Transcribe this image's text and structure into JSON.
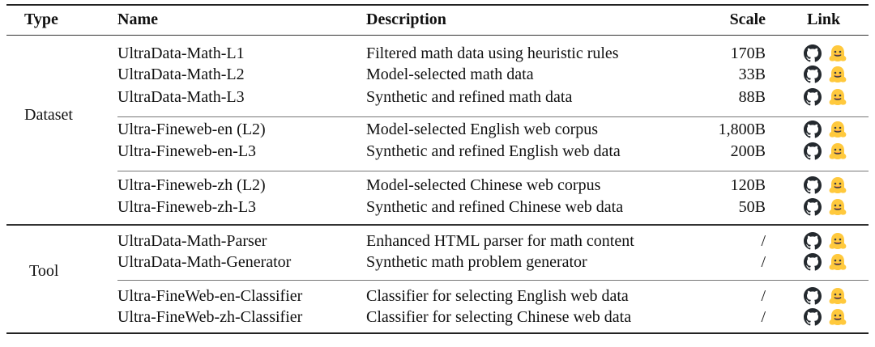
{
  "header": {
    "type": "Type",
    "name": "Name",
    "description": "Description",
    "scale": "Scale",
    "link": "Link"
  },
  "groups": [
    {
      "type": "Dataset",
      "rows": [
        {
          "name": "UltraData-Math-L1",
          "description": "Filtered math data using heuristic rules",
          "scale": "170B"
        },
        {
          "name": "UltraData-Math-L2",
          "description": "Model-selected math data",
          "scale": "33B"
        },
        {
          "name": "UltraData-Math-L3",
          "description": "Synthetic and refined math data",
          "scale": "88B"
        },
        {
          "name": "Ultra-Fineweb-en (L2)",
          "description": "Model-selected English web corpus",
          "scale": "1,800B"
        },
        {
          "name": "Ultra-Fineweb-en-L3",
          "description": "Synthetic and refined English web data",
          "scale": "200B"
        },
        {
          "name": "Ultra-Fineweb-zh (L2)",
          "description": "Model-selected Chinese web corpus",
          "scale": "120B"
        },
        {
          "name": "Ultra-Fineweb-zh-L3",
          "description": "Synthetic and refined Chinese web data",
          "scale": "50B"
        }
      ]
    },
    {
      "type": "Tool",
      "rows": [
        {
          "name": "UltraData-Math-Parser",
          "description": "Enhanced HTML parser for math content",
          "scale": "/"
        },
        {
          "name": "UltraData-Math-Generator",
          "description": "Synthetic math problem generator",
          "scale": "/"
        },
        {
          "name": "Ultra-FineWeb-en-Classifier",
          "description": "Classifier for selecting English web data",
          "scale": "/"
        },
        {
          "name": "Ultra-FineWeb-zh-Classifier",
          "description": "Classifier for selecting Chinese web data",
          "scale": "/"
        }
      ]
    }
  ],
  "icons": {
    "github": "github-icon",
    "huggingface": "huggingface-icon"
  },
  "colors": {
    "github": "#24292e",
    "huggingface": "#FFC93D"
  }
}
